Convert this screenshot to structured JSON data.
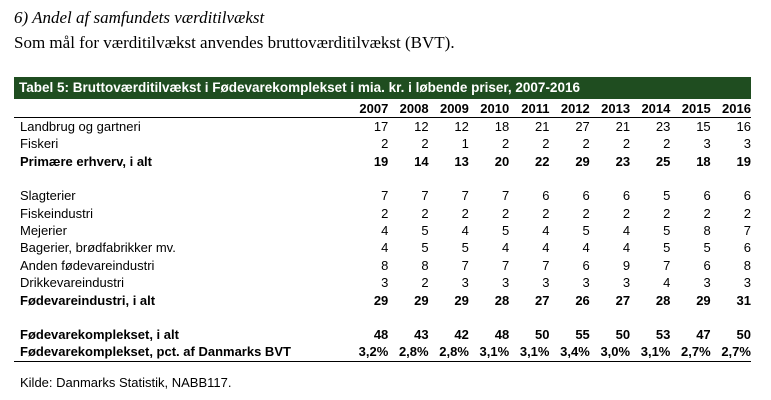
{
  "heading": "6) Andel af samfundets værditilvækst",
  "subheading": "Som mål for værditilvækst anvendes bruttoværditilvækst (BVT).",
  "table": {
    "title": "Tabel 5: Bruttoværditilvækst i Fødevarekomplekset i mia. kr. i løbende priser, 2007-2016",
    "years": [
      "2007",
      "2008",
      "2009",
      "2010",
      "2011",
      "2012",
      "2013",
      "2014",
      "2015",
      "2016"
    ],
    "rows": [
      {
        "label": "Landbrug og gartneri",
        "values": [
          "17",
          "12",
          "12",
          "18",
          "21",
          "27",
          "21",
          "23",
          "15",
          "16"
        ]
      },
      {
        "label": "Fiskeri",
        "values": [
          "2",
          "2",
          "1",
          "2",
          "2",
          "2",
          "2",
          "2",
          "3",
          "3"
        ]
      },
      {
        "label": "Primære erhverv, i alt",
        "values": [
          "19",
          "14",
          "13",
          "20",
          "22",
          "29",
          "23",
          "25",
          "18",
          "19"
        ]
      },
      {
        "label": "Slagterier",
        "values": [
          "7",
          "7",
          "7",
          "7",
          "6",
          "6",
          "6",
          "5",
          "6",
          "6"
        ]
      },
      {
        "label": "Fiskeindustri",
        "values": [
          "2",
          "2",
          "2",
          "2",
          "2",
          "2",
          "2",
          "2",
          "2",
          "2"
        ]
      },
      {
        "label": "Mejerier",
        "values": [
          "4",
          "5",
          "4",
          "5",
          "4",
          "5",
          "4",
          "5",
          "8",
          "7"
        ]
      },
      {
        "label": "Bagerier, brødfabrikker mv.",
        "values": [
          "4",
          "5",
          "5",
          "4",
          "4",
          "4",
          "4",
          "5",
          "5",
          "6"
        ]
      },
      {
        "label": "Anden fødevareindustri",
        "values": [
          "8",
          "8",
          "7",
          "7",
          "7",
          "6",
          "9",
          "7",
          "6",
          "8"
        ]
      },
      {
        "label": "Drikkevareindustri",
        "values": [
          "3",
          "2",
          "3",
          "3",
          "3",
          "3",
          "3",
          "4",
          "3",
          "3"
        ]
      },
      {
        "label": "Fødevareindustri, i alt",
        "values": [
          "29",
          "29",
          "29",
          "28",
          "27",
          "26",
          "27",
          "28",
          "29",
          "31"
        ]
      },
      {
        "label": "Fødevarekomplekset, i alt",
        "values": [
          "48",
          "43",
          "42",
          "48",
          "50",
          "55",
          "50",
          "53",
          "47",
          "50"
        ]
      },
      {
        "label": "Fødevarekomplekset, pct. af Danmarks BVT",
        "values": [
          "3,2%",
          "2,8%",
          "2,8%",
          "3,1%",
          "3,1%",
          "3,4%",
          "3,0%",
          "3,1%",
          "2,7%",
          "2,7%"
        ]
      }
    ]
  },
  "source": "Kilde: Danmarks Statistik, NABB117.",
  "colors": {
    "title_bar": "#1f4d20",
    "title_text": "#ffffff"
  }
}
